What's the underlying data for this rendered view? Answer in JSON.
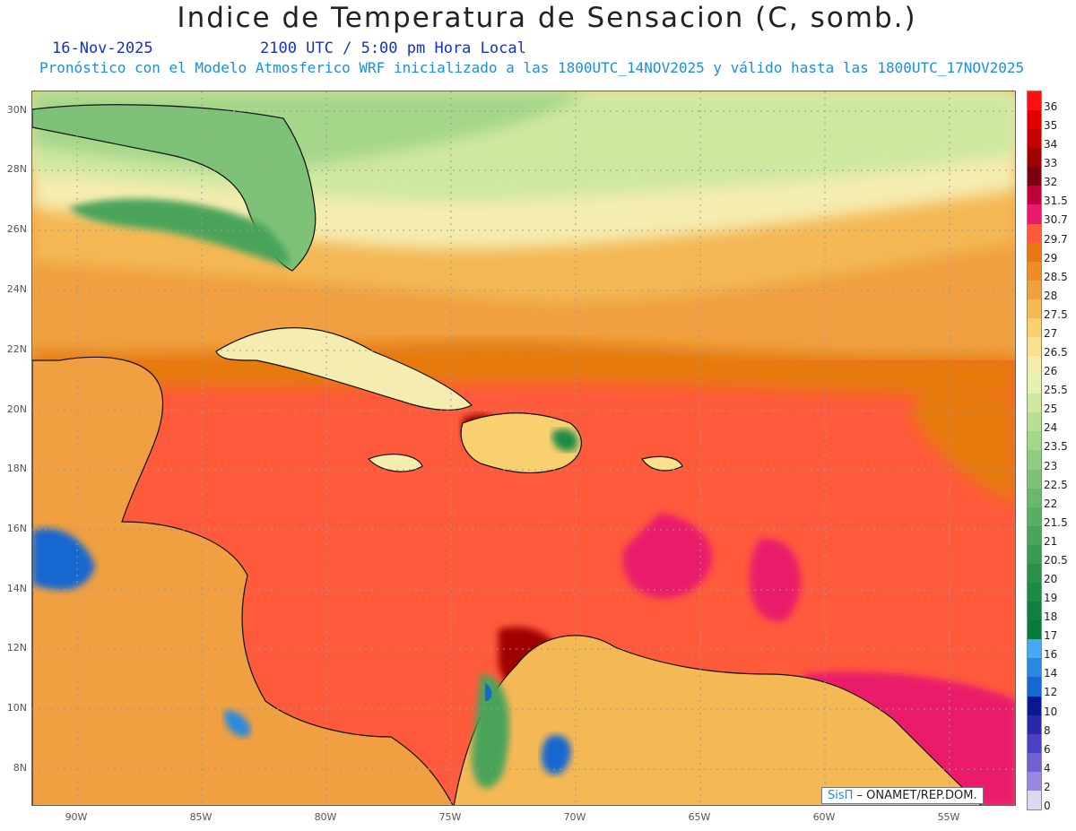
{
  "header": {
    "title": "Indice de Temperatura de Sensacion (C, somb.)",
    "date": "16-Nov-2025",
    "time": "2100 UTC / 5:00 pm Hora Local",
    "model_info": "Pronóstico con el Modelo Atmosferico WRF inicializado a las 1800UTC_14NOV2025 y válido hasta las  1800UTC_17NOV2025"
  },
  "axes": {
    "lat_labels": [
      "30N",
      "28N",
      "26N",
      "24N",
      "22N",
      "20N",
      "18N",
      "16N",
      "14N",
      "12N",
      "10N",
      "8N"
    ],
    "lon_labels": [
      "90W",
      "85W",
      "80W",
      "75W",
      "70W",
      "65W",
      "60W",
      "55W"
    ]
  },
  "colorbar": {
    "labels": [
      "36",
      "35",
      "34",
      "33",
      "32",
      "31.5",
      "30.7",
      "29.7",
      "29",
      "28.5",
      "28",
      "27.5",
      "27",
      "26.5",
      "26",
      "25.5",
      "25",
      "24",
      "23.5",
      "23",
      "22.5",
      "22",
      "21.5",
      "21",
      "20.5",
      "20",
      "19",
      "18",
      "17",
      "16",
      "14",
      "12",
      "10",
      "8",
      "6",
      "4",
      "2",
      "0"
    ],
    "colors": [
      "#ff1010",
      "#e00000",
      "#c40000",
      "#a00000",
      "#7a0010",
      "#c0003a",
      "#ea1a6a",
      "#ff5a3c",
      "#e67a10",
      "#ef8c2a",
      "#f0a040",
      "#f4b855",
      "#f8d070",
      "#f8e08c",
      "#f5ecb0",
      "#e6f0b0",
      "#cfe8a0",
      "#b8e092",
      "#a6d68a",
      "#92cc80",
      "#7ec278",
      "#6ab86e",
      "#58ae64",
      "#48a45a",
      "#3a9a52",
      "#2c904a",
      "#1c8a44",
      "#108040",
      "#0a7a3a",
      "#4aa8f0",
      "#2a88e0",
      "#1468d0",
      "#0a1890",
      "#2828a8",
      "#4a40c0",
      "#7060d0",
      "#9a88e0",
      "#dcd8f4"
    ]
  },
  "credit": {
    "brand": "SisΠ",
    "org": " – ONAMET/REP.DOM."
  }
}
